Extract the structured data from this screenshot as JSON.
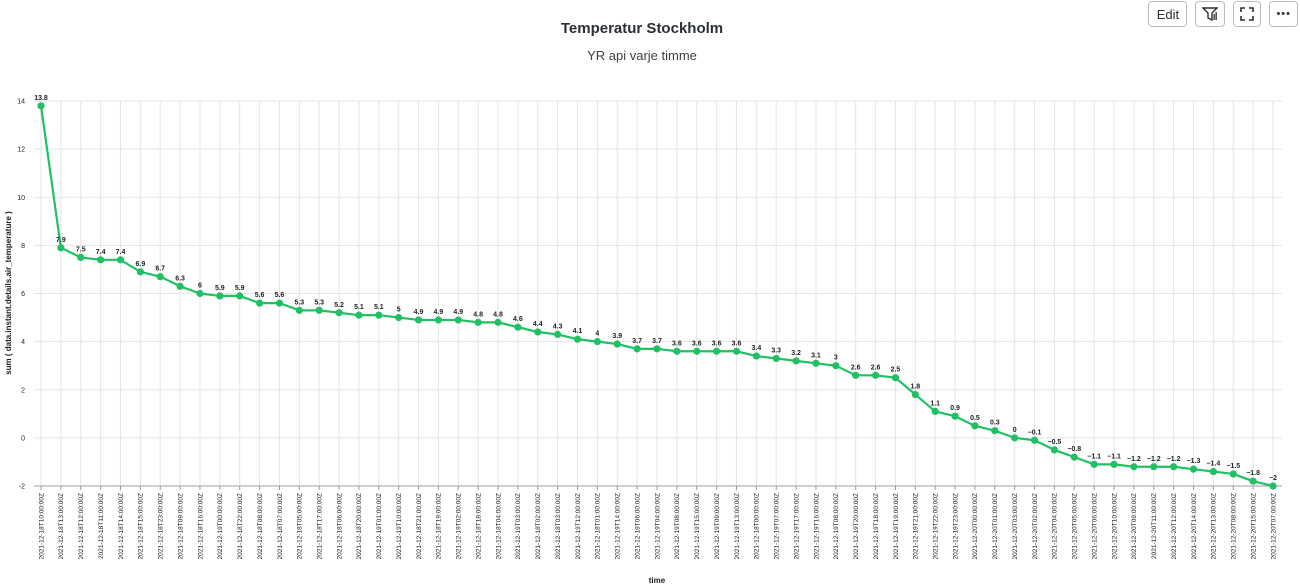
{
  "chart_data": {
    "type": "line",
    "title": "Temperatur Stockholm",
    "subtitle": "YR api varje timme",
    "xlabel": "time",
    "ylabel": "sum ( data.instant.details.air_temperature )",
    "ylim": [
      -2,
      14
    ],
    "yticks": [
      -2,
      0,
      2,
      4,
      6,
      8,
      10,
      12,
      14
    ],
    "grid": true,
    "line_color": "#21c063",
    "x": [
      "2021-12-18T10:00:00Z",
      "2021-12-18T13:00:00Z",
      "2021-12-18T12:00:00Z",
      "2021-12-18T11:00:00Z",
      "2021-12-18T14:00:00Z",
      "2021-12-18T15:00:00Z",
      "2021-12-18T23:00:00Z",
      "2021-12-18T09:00:00Z",
      "2021-12-18T16:00:00Z",
      "2021-12-19T00:00:00Z",
      "2021-12-18T22:00:00Z",
      "2021-12-18T08:00:00Z",
      "2021-12-18T07:00:00Z",
      "2021-12-18T05:00:00Z",
      "2021-12-18T17:00:00Z",
      "2021-12-18T06:00:00Z",
      "2021-12-18T20:00:00Z",
      "2021-12-19T01:00:00Z",
      "2021-12-19T10:00:00Z",
      "2021-12-18T21:00:00Z",
      "2021-12-18T19:00:00Z",
      "2021-12-19T02:00:00Z",
      "2021-12-18T18:00:00Z",
      "2021-12-18T04:00:00Z",
      "2021-12-19T03:00:00Z",
      "2021-12-18T02:00:00Z",
      "2021-12-18T03:00:00Z",
      "2021-12-19T12:00:00Z",
      "2021-12-18T01:00:00Z",
      "2021-12-19T14:00:00Z",
      "2021-12-19T06:00:00Z",
      "2021-12-19T04:00:00Z",
      "2021-12-19T08:00:00Z",
      "2021-12-19T15:00:00Z",
      "2021-12-19T09:00:00Z",
      "2021-12-19T13:00:00Z",
      "2021-12-18T00:00:00Z",
      "2021-12-19T07:00:00Z",
      "2021-12-19T17:00:00Z",
      "2021-12-19T16:00:00Z",
      "2021-12-19T08:00:00Z",
      "2021-12-19T20:00:00Z",
      "2021-12-19T18:00:00Z",
      "2021-12-19T19:00:00Z",
      "2021-12-19T21:00:00Z",
      "2021-12-19T22:00:00Z",
      "2021-12-19T23:00:00Z",
      "2021-12-20T00:00:00Z",
      "2021-12-20T01:00:00Z",
      "2021-12-20T03:00:00Z",
      "2021-12-20T02:00:00Z",
      "2021-12-20T04:00:00Z",
      "2021-12-20T05:00:00Z",
      "2021-12-20T06:00:00Z",
      "2021-12-20T10:00:00Z",
      "2021-12-20T09:00:00Z",
      "2021-12-20T11:00:00Z",
      "2021-12-20T12:00:00Z",
      "2021-12-20T14:00:00Z",
      "2021-12-20T13:00:00Z",
      "2021-12-20T08:00:00Z",
      "2021-12-20T15:00:00Z",
      "2021-12-20T07:00:00Z"
    ],
    "values": [
      13.8,
      7.9,
      7.5,
      7.4,
      7.4,
      6.9,
      6.7,
      6.3,
      6,
      5.9,
      5.9,
      5.6,
      5.6,
      5.3,
      5.3,
      5.2,
      5.1,
      5.1,
      5,
      4.9,
      4.9,
      4.9,
      4.8,
      4.8,
      4.6,
      4.4,
      4.3,
      4.1,
      4,
      3.9,
      3.7,
      3.7,
      3.6,
      3.6,
      3.6,
      3.6,
      3.4,
      3.3,
      3.2,
      3.1,
      3,
      2.6,
      2.6,
      2.5,
      1.8,
      1.1,
      0.9,
      0.5,
      0.3,
      0,
      -0.1,
      -0.5,
      -0.8,
      -1.1,
      -1.1,
      -1.2,
      -1.2,
      -1.2,
      -1.3,
      -1.4,
      -1.5,
      -1.8,
      -2
    ]
  },
  "toolbar": {
    "edit_label": "Edit",
    "more_label": "•••"
  }
}
